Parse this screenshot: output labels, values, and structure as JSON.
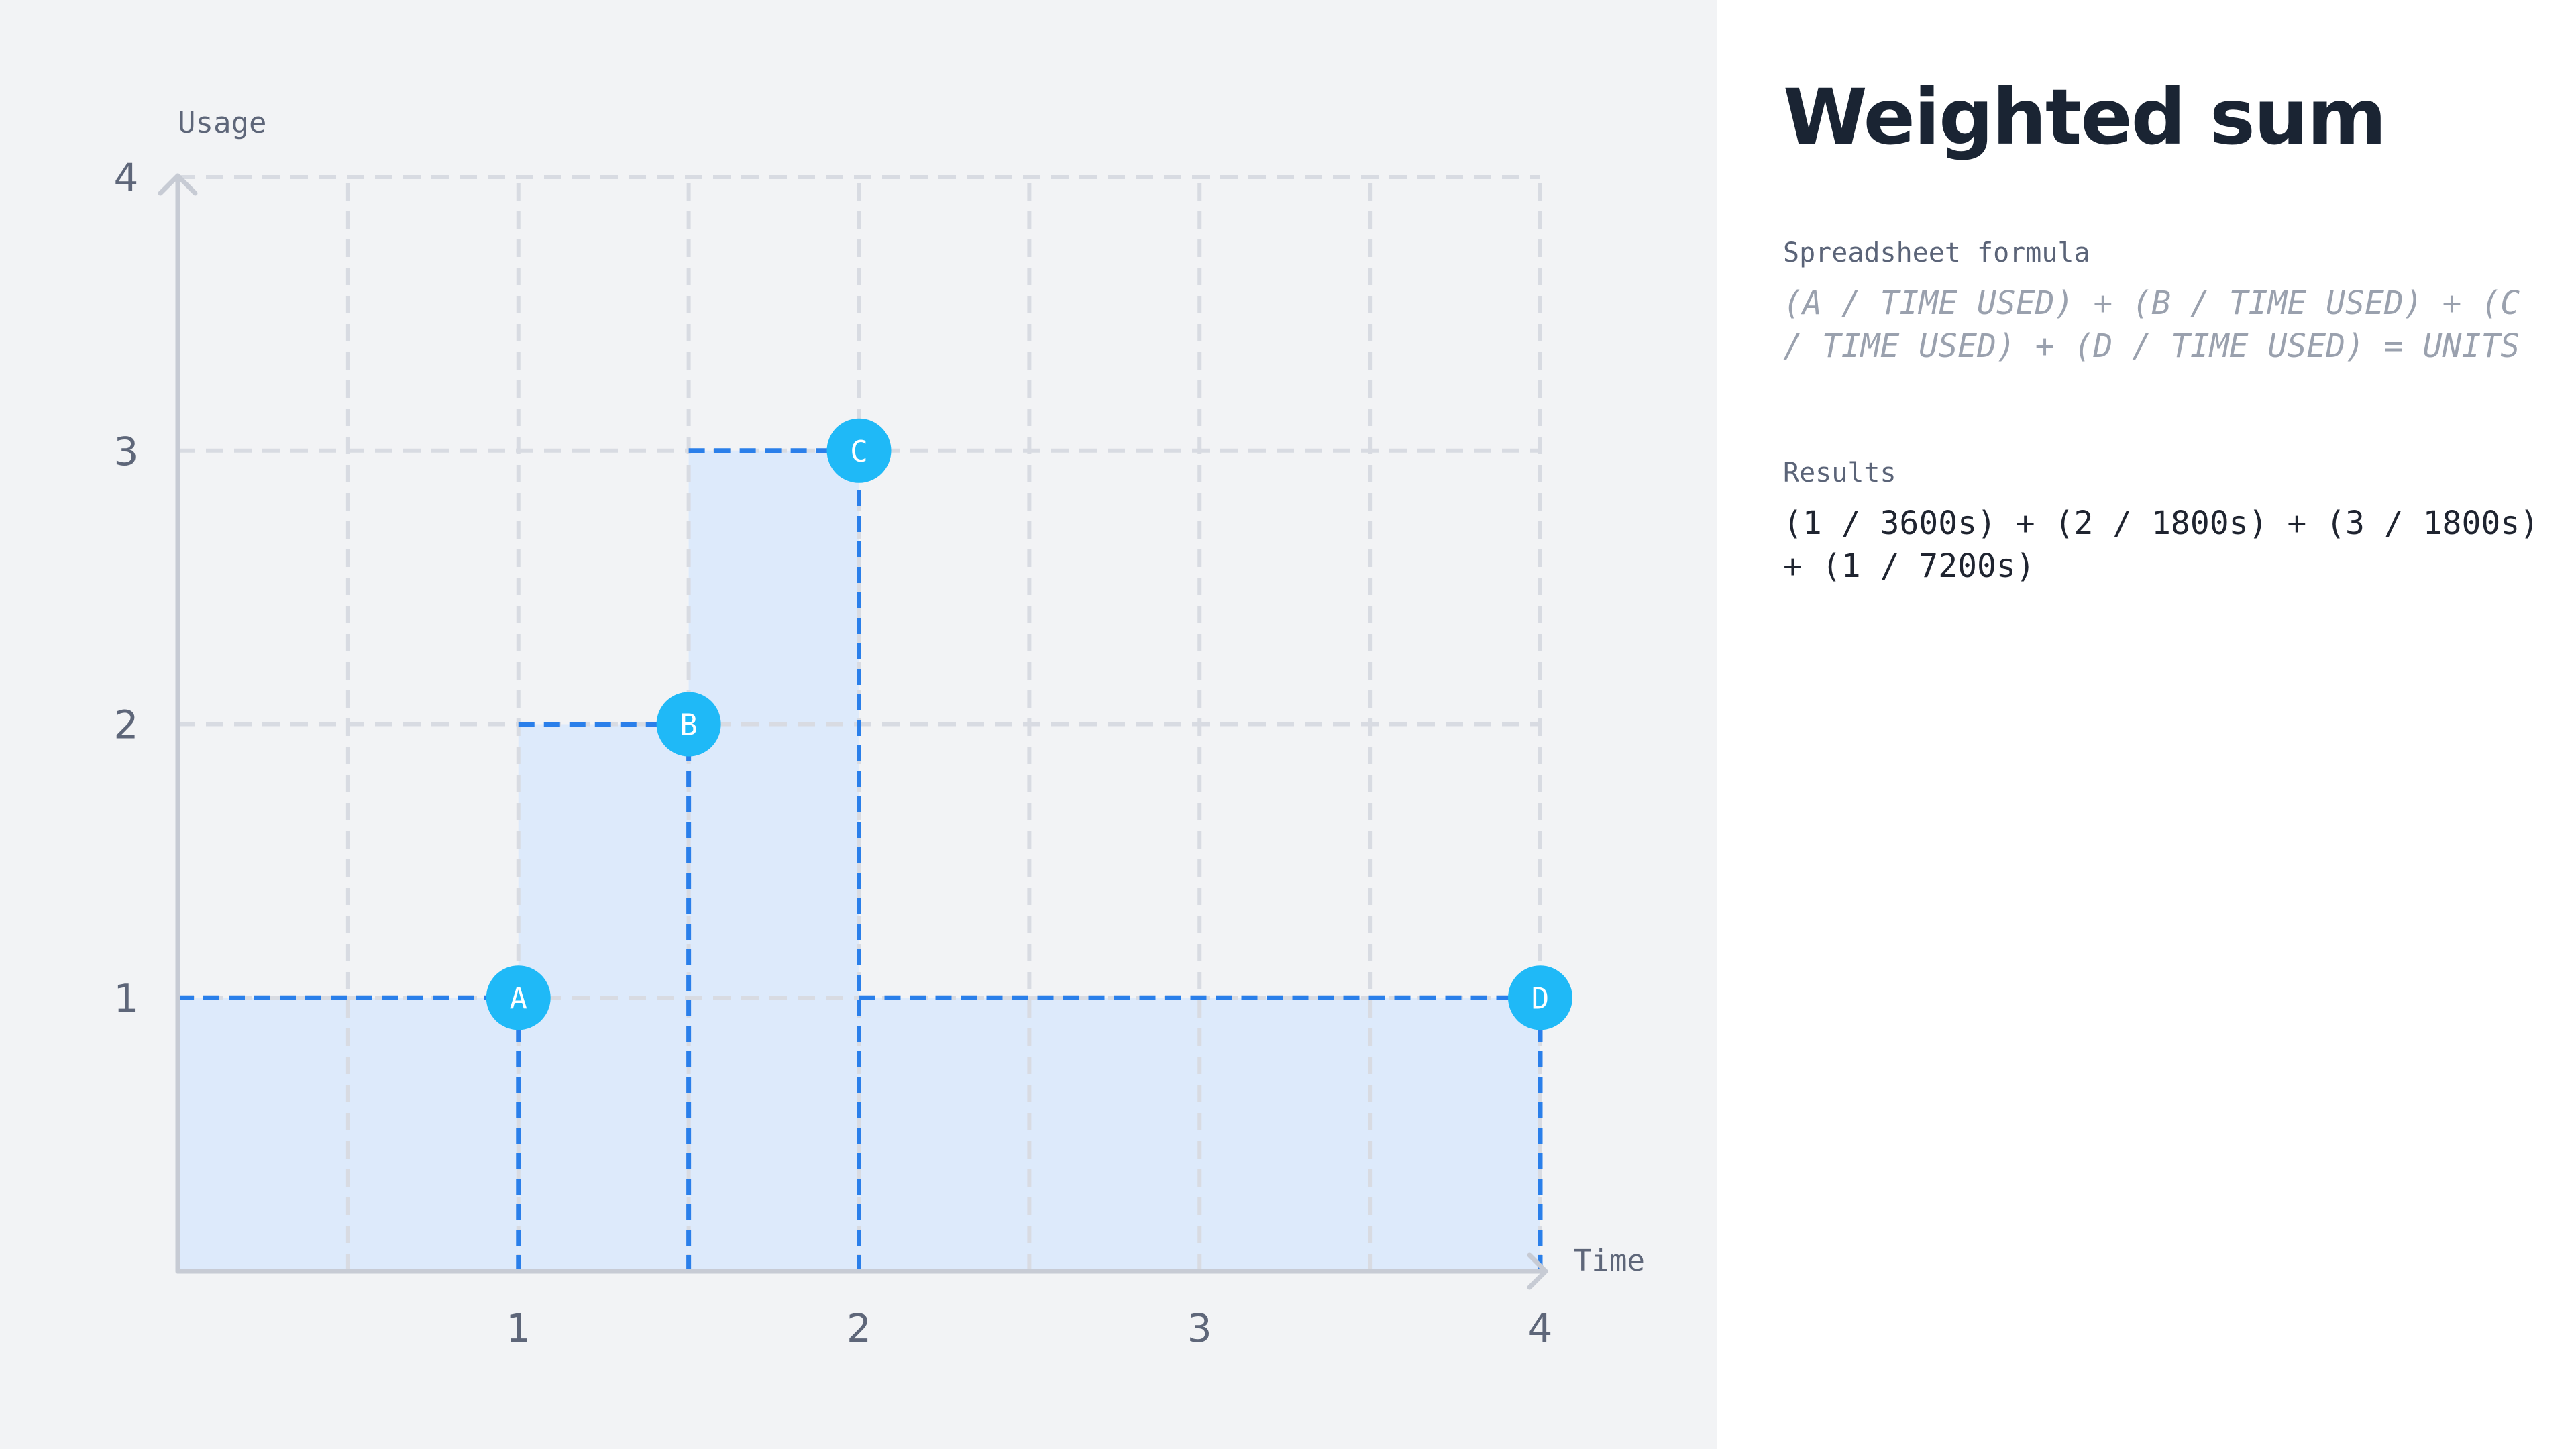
{
  "title": "Weighted sum",
  "formula": {
    "label": "Spreadsheet formula",
    "text": "(A / TIME USED) + (B / TIME USED) + (C / TIME USED) + (D / TIME USED) = UNITS"
  },
  "results": {
    "label": "Results",
    "text": "(1 / 3600s) + (2 / 1800s) + (3 / 1800s) + (1 / 7200s)"
  },
  "chart_data": {
    "type": "area",
    "step": true,
    "xlabel": "Time",
    "ylabel": "Usage",
    "xlim": [
      0,
      4
    ],
    "ylim": [
      0,
      4
    ],
    "x_ticks": [
      1,
      2,
      3,
      4
    ],
    "y_ticks": [
      1,
      2,
      3,
      4
    ],
    "x_gridlines": [
      0.5,
      1,
      1.5,
      2,
      2.5,
      3,
      3.5,
      4
    ],
    "y_gridlines": [
      1,
      2,
      3,
      4
    ],
    "grid": true,
    "segments": [
      {
        "x_start": 0,
        "x_end": 1,
        "value": 1
      },
      {
        "x_start": 1,
        "x_end": 1.5,
        "value": 2
      },
      {
        "x_start": 1.5,
        "x_end": 2,
        "value": 3
      },
      {
        "x_start": 2,
        "x_end": 4,
        "value": 1
      }
    ],
    "points": [
      {
        "label": "A",
        "x": 1,
        "y": 1
      },
      {
        "label": "B",
        "x": 1.5,
        "y": 2
      },
      {
        "label": "C",
        "x": 2,
        "y": 3
      },
      {
        "label": "D",
        "x": 4,
        "y": 1
      }
    ],
    "colors": {
      "fill": "#ddeafb",
      "step_line": "#2a7fea",
      "marker": "#1fb9f7",
      "marker_text": "#ffffff",
      "grid": "#d8dbe2",
      "axis": "#c7cbd4",
      "tick_text": "#5e6679",
      "axis_label": "#5e6679"
    }
  }
}
